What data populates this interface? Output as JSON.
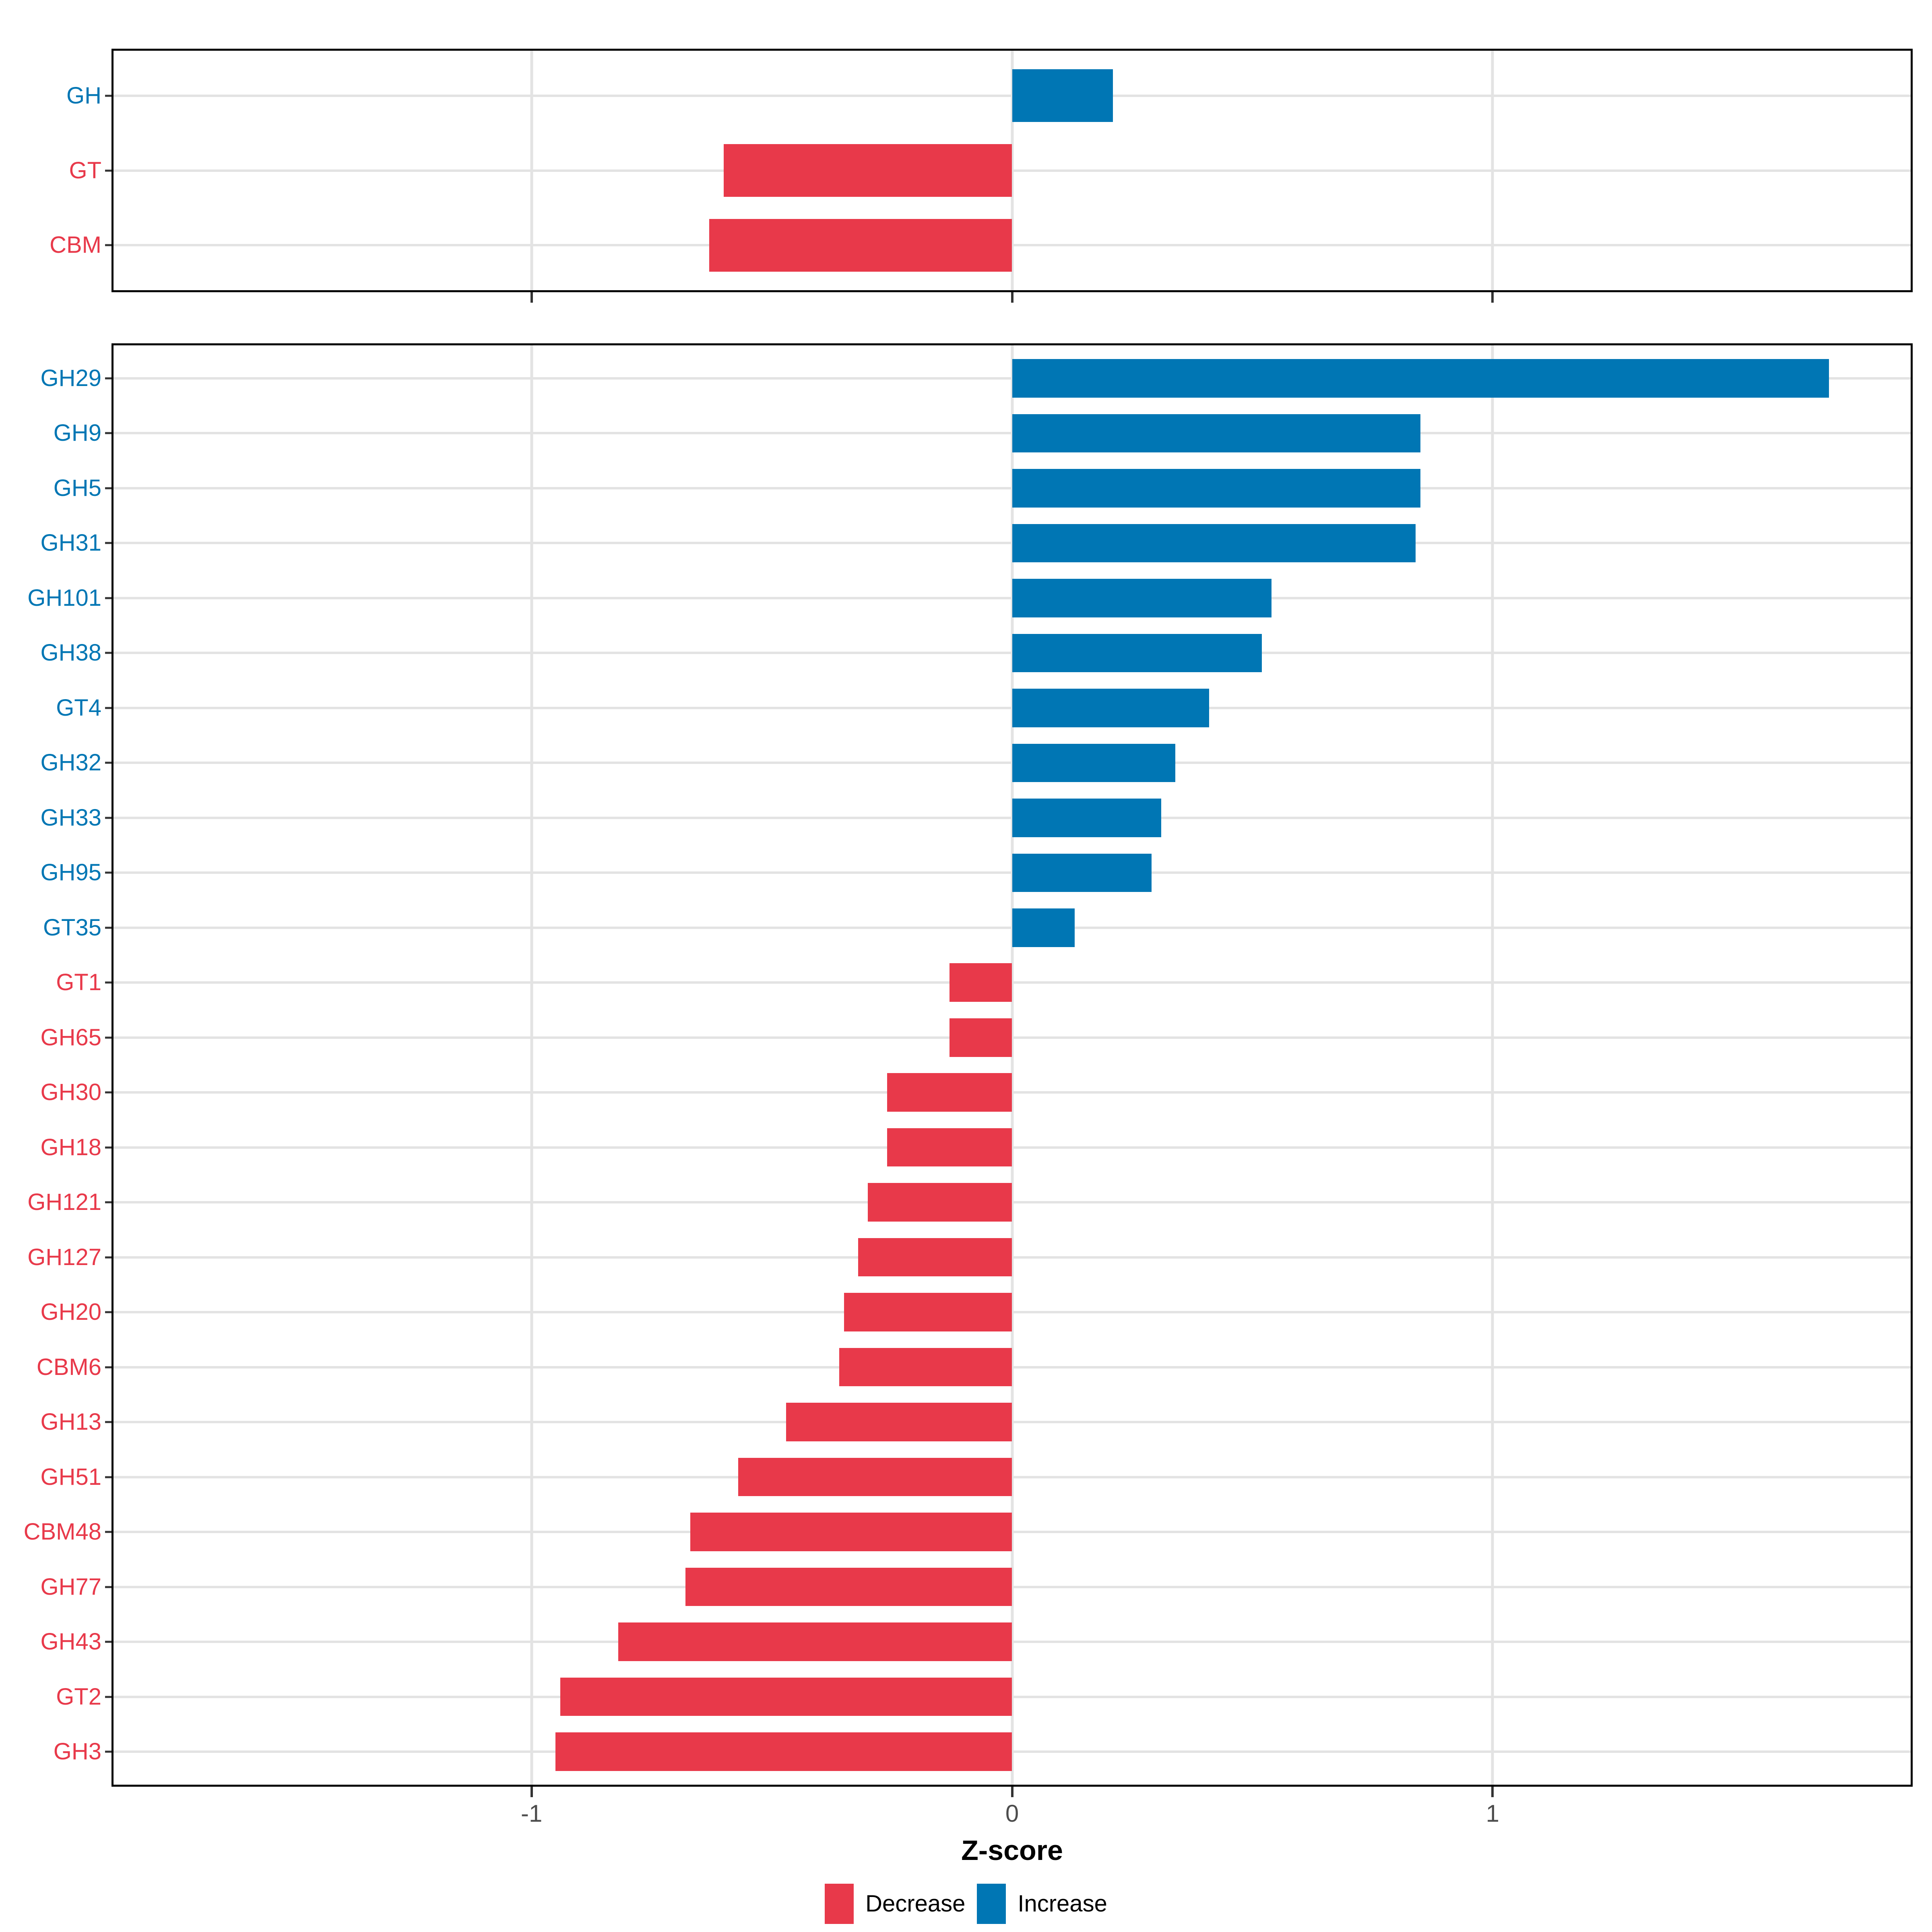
{
  "figure": {
    "axis_title": "Z-score",
    "x_ticks": [
      {
        "value": -1,
        "label": "-1"
      },
      {
        "value": 0,
        "label": "0"
      },
      {
        "value": 1,
        "label": "1"
      }
    ],
    "x_domain": [
      -1.87,
      1.87
    ]
  },
  "colors": {
    "increase": "#0076B4",
    "decrease": "#E8394A",
    "grid": "#e3e3e3",
    "tick": "#333333",
    "tick_label": "#4d4d4d",
    "panel_border": "#000000"
  },
  "legend": {
    "items": [
      {
        "label": "Decrease",
        "direction": "decrease",
        "color": "#E8394A"
      },
      {
        "label": "Increase",
        "direction": "increase",
        "color": "#0076B4"
      }
    ]
  },
  "chart_data": [
    {
      "type": "bar",
      "orientation": "horizontal",
      "panel": "summary",
      "title": "",
      "xlabel": "Z-score",
      "xlim": [
        -1.87,
        1.87
      ],
      "xticks": [
        -1,
        0,
        1
      ],
      "grid": true,
      "legend_position": "bottom",
      "categories": [
        "GH",
        "GT",
        "CBM"
      ],
      "values": [
        0.21,
        -0.6,
        -0.63
      ]
    },
    {
      "type": "bar",
      "orientation": "horizontal",
      "panel": "families",
      "title": "",
      "xlabel": "Z-score",
      "xlim": [
        -1.87,
        1.87
      ],
      "xticks": [
        -1,
        0,
        1
      ],
      "grid": true,
      "legend_position": "bottom",
      "categories": [
        "GH29",
        "GH9",
        "GH5",
        "GH31",
        "GH101",
        "GH38",
        "GT4",
        "GH32",
        "GH33",
        "GH95",
        "GT35",
        "GT1",
        "GH65",
        "GH30",
        "GH18",
        "GH121",
        "GH127",
        "GH20",
        "CBM6",
        "GH13",
        "GH51",
        "CBM48",
        "GH77",
        "GH43",
        "GT2",
        "GH3"
      ],
      "values": [
        1.7,
        0.85,
        0.85,
        0.84,
        0.54,
        0.52,
        0.41,
        0.34,
        0.31,
        0.29,
        0.13,
        -0.13,
        -0.13,
        -0.26,
        -0.26,
        -0.3,
        -0.32,
        -0.35,
        -0.36,
        -0.47,
        -0.57,
        -0.67,
        -0.68,
        -0.82,
        -0.94,
        -0.95
      ]
    }
  ]
}
